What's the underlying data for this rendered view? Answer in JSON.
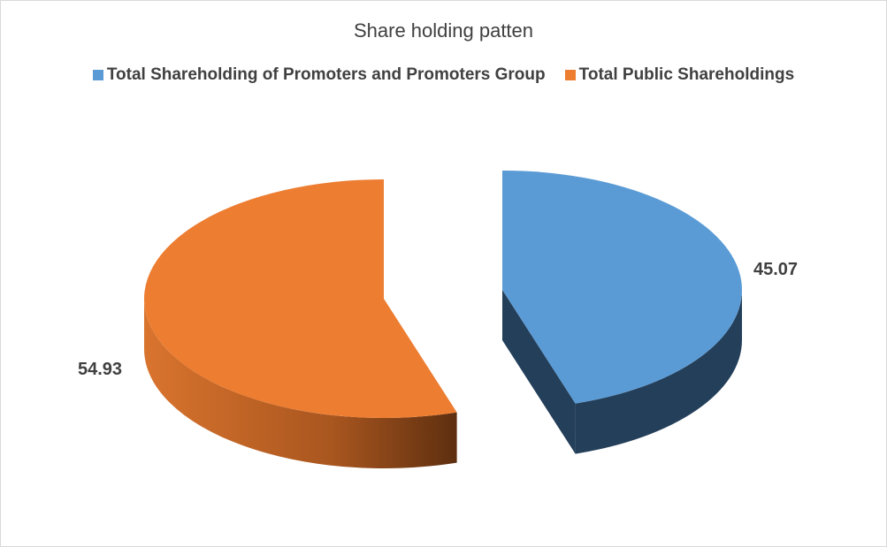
{
  "chart_data": {
    "type": "pie",
    "style": "3d-exploded",
    "title": "Share holding patten",
    "legend_position": "top",
    "categories": [
      "Total Shareholding of Promoters and Promoters Group",
      "Total Public Shareholdings"
    ],
    "values": [
      45.07,
      54.93
    ],
    "data_labels": [
      "45.07",
      "54.93"
    ],
    "colors": [
      "#5b9bd5",
      "#ed7d31"
    ],
    "side_colors": [
      "#243f5a",
      "#9a4f1c"
    ]
  }
}
